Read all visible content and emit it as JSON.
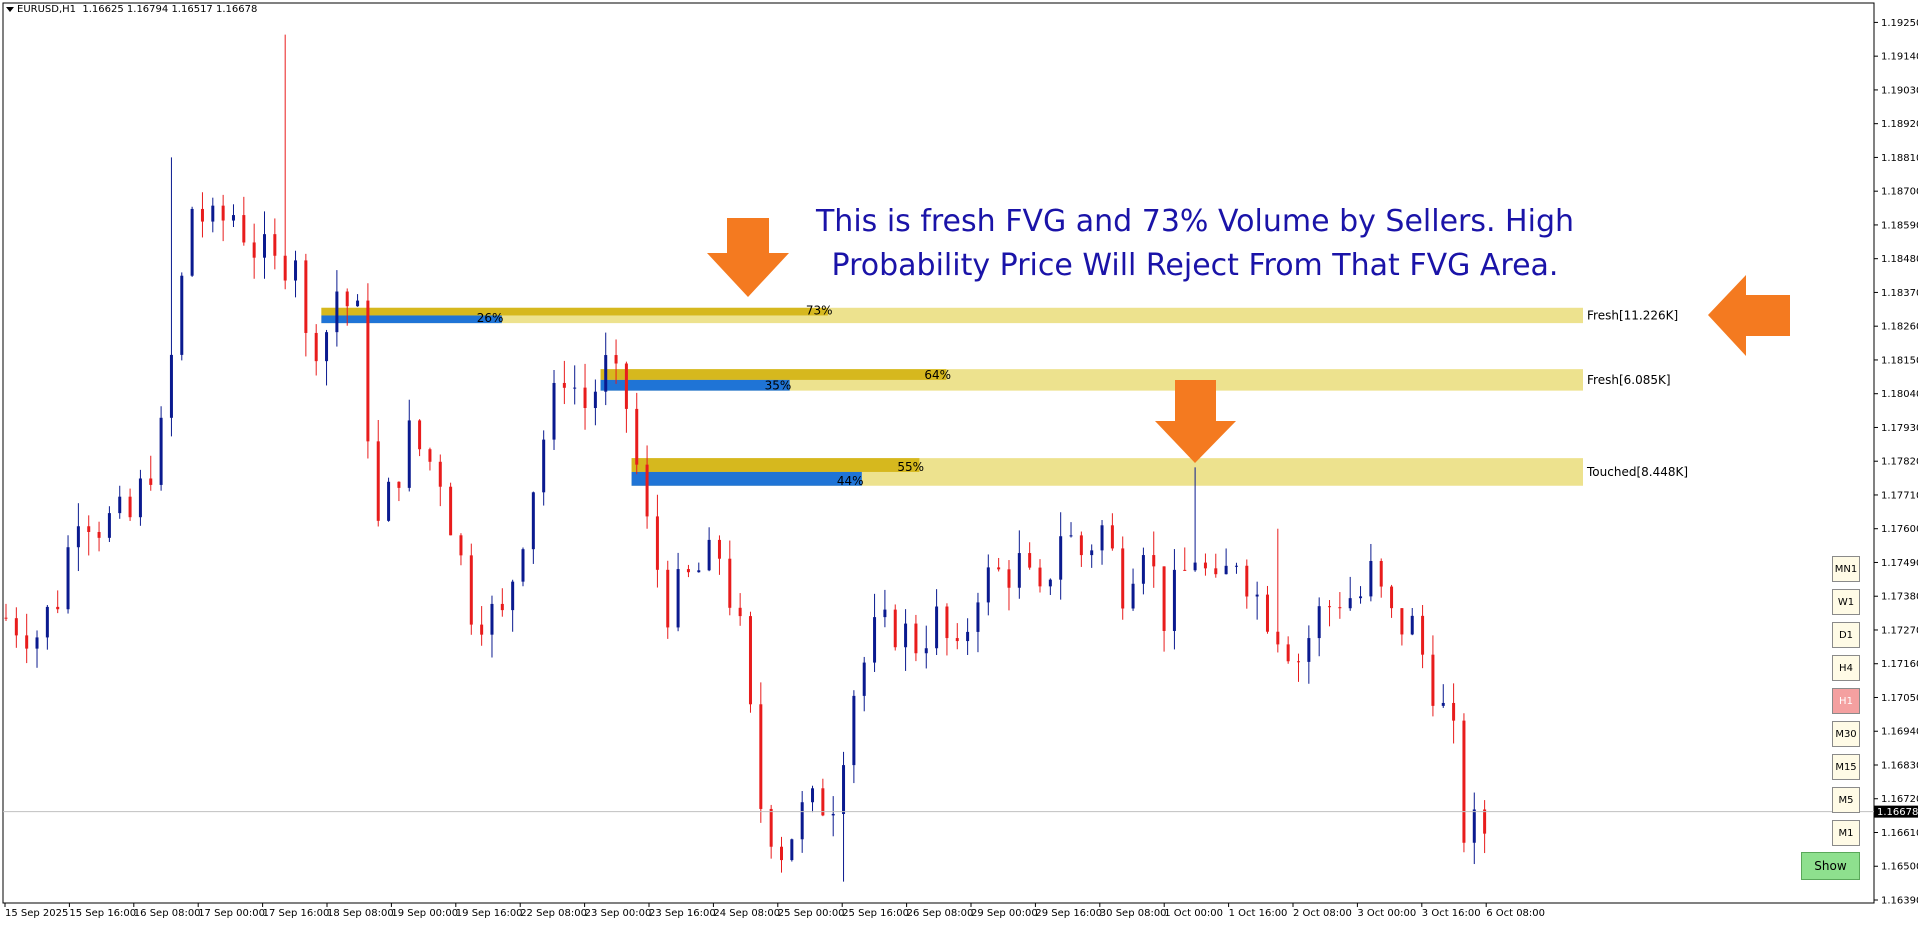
{
  "header": {
    "symbol": "EURUSD,H1",
    "ohlc": "1.16625 1.16794 1.16517 1.16678"
  },
  "annotation": {
    "line1": "This is fresh FVG and 73% Volume by Sellers. High",
    "line2": "Probability Price Will Reject From That FVG Area."
  },
  "timeframes": [
    {
      "label": "MN1",
      "active": false
    },
    {
      "label": "W1",
      "active": false
    },
    {
      "label": "D1",
      "active": false
    },
    {
      "label": "H4",
      "active": false
    },
    {
      "label": "H1",
      "active": true
    },
    {
      "label": "M30",
      "active": false
    },
    {
      "label": "M15",
      "active": false
    },
    {
      "label": "M5",
      "active": false
    },
    {
      "label": "M1",
      "active": false
    }
  ],
  "show_button": "Show",
  "colors": {
    "bull": "#0a1a8f",
    "bear": "#e81c1c",
    "zone": "#ede28e",
    "seller_bar": "#d6b81e",
    "buyer_bar": "#1f74d6",
    "arrow": "#f47a20",
    "annotation": "#1a13a8"
  },
  "chart_data": {
    "type": "candlestick",
    "title": "EURUSD,H1",
    "current_price": "1.16678",
    "ylim": [
      1.1639,
      1.1931
    ],
    "y_ticks": [
      "1.19250",
      "1.19140",
      "1.19030",
      "1.18920",
      "1.18810",
      "1.18700",
      "1.18590",
      "1.18480",
      "1.18370",
      "1.18260",
      "1.18150",
      "1.18040",
      "1.17930",
      "1.17820",
      "1.17710",
      "1.17600",
      "1.17490",
      "1.17380",
      "1.17270",
      "1.17160",
      "1.17050",
      "1.16940",
      "1.16830",
      "1.16720",
      "1.16610",
      "1.16500",
      "1.16390"
    ],
    "x_ticks": [
      "15 Sep 2025",
      "15 Sep 16:00",
      "16 Sep 08:00",
      "17 Sep 00:00",
      "17 Sep 16:00",
      "18 Sep 08:00",
      "19 Sep 00:00",
      "19 Sep 16:00",
      "22 Sep 08:00",
      "23 Sep 00:00",
      "23 Sep 16:00",
      "24 Sep 08:00",
      "25 Sep 00:00",
      "25 Sep 16:00",
      "26 Sep 08:00",
      "29 Sep 00:00",
      "29 Sep 16:00",
      "30 Sep 08:00",
      "1 Oct 00:00",
      "1 Oct 16:00",
      "2 Oct 08:00",
      "3 Oct 00:00",
      "3 Oct 16:00",
      "6 Oct 08:00"
    ],
    "fvg_zones": [
      {
        "label": "Fresh[11.226K]",
        "top": 1.1832,
        "bottom": 1.1827,
        "start": 30.5,
        "seller_pct": 73,
        "seller_text": "73%",
        "buyer_pct": 26,
        "buyer_text": "26%"
      },
      {
        "label": "Fresh[6.085K]",
        "top": 1.1812,
        "bottom": 1.1805,
        "start": 57.5,
        "seller_pct": 64,
        "seller_text": "64%",
        "buyer_pct": 35,
        "buyer_text": "35%"
      },
      {
        "label": "Touched[8.448K]",
        "top": 1.1783,
        "bottom": 1.1774,
        "start": 60.5,
        "seller_pct": 55,
        "seller_text": "55%",
        "buyer_pct": 44,
        "buyer_text": "44%"
      }
    ],
    "path_points": [
      [
        0,
        1.1731
      ],
      [
        3,
        1.1726
      ],
      [
        5,
        1.1738
      ],
      [
        7,
        1.1768
      ],
      [
        9,
        1.1762
      ],
      [
        12,
        1.1763
      ],
      [
        15,
        1.179
      ],
      [
        17,
        1.184
      ],
      [
        18,
        1.1865
      ],
      [
        20,
        1.1858
      ],
      [
        22,
        1.1863
      ],
      [
        24,
        1.1852
      ],
      [
        26,
        1.1845
      ],
      [
        28,
        1.1852
      ],
      [
        29,
        1.182
      ],
      [
        31,
        1.1825
      ],
      [
        32,
        1.1838
      ],
      [
        34,
        1.1828
      ],
      [
        36,
        1.176
      ],
      [
        39,
        1.179
      ],
      [
        42,
        1.1778
      ],
      [
        45,
        1.1735
      ],
      [
        48,
        1.173
      ],
      [
        50,
        1.176
      ],
      [
        52,
        1.179
      ],
      [
        54,
        1.1812
      ],
      [
        56,
        1.18
      ],
      [
        58,
        1.1812
      ],
      [
        60,
        1.18
      ],
      [
        62,
        1.176
      ],
      [
        64,
        1.1735
      ],
      [
        66,
        1.1743
      ],
      [
        69,
        1.1752
      ],
      [
        71,
        1.1725
      ],
      [
        73,
        1.167
      ],
      [
        75,
        1.1656
      ],
      [
        77,
        1.1667
      ],
      [
        80,
        1.1673
      ],
      [
        82,
        1.1708
      ],
      [
        84,
        1.1725
      ],
      [
        86,
        1.1728
      ],
      [
        88,
        1.1723
      ],
      [
        90,
        1.173
      ],
      [
        92,
        1.1716
      ],
      [
        94,
        1.1742
      ],
      [
        96,
        1.1745
      ],
      [
        98,
        1.1748
      ],
      [
        100,
        1.1735
      ],
      [
        102,
        1.176
      ],
      [
        104,
        1.1752
      ],
      [
        106,
        1.176
      ],
      [
        108,
        1.1742
      ],
      [
        110,
        1.1758
      ],
      [
        112,
        1.1732
      ],
      [
        115,
        1.1752
      ],
      [
        117,
        1.1738
      ],
      [
        119,
        1.1752
      ],
      [
        121,
        1.1738
      ],
      [
        123,
        1.1728
      ],
      [
        125,
        1.1718
      ],
      [
        127,
        1.1732
      ],
      [
        129,
        1.1738
      ],
      [
        131,
        1.1738
      ],
      [
        132,
        1.1745
      ],
      [
        134,
        1.173
      ],
      [
        136,
        1.1728
      ],
      [
        138,
        1.171
      ],
      [
        140,
        1.169
      ],
      [
        141,
        1.1662
      ]
    ],
    "wick_extremes": [
      {
        "index": 27,
        "price": 1.1921
      },
      {
        "index": 16,
        "price": 1.1881
      },
      {
        "index": 115,
        "price": 1.178
      },
      {
        "index": 123,
        "price": 1.176
      },
      {
        "index": 81,
        "price": 1.1645
      },
      {
        "index": 142,
        "price": 1.1653
      }
    ]
  }
}
